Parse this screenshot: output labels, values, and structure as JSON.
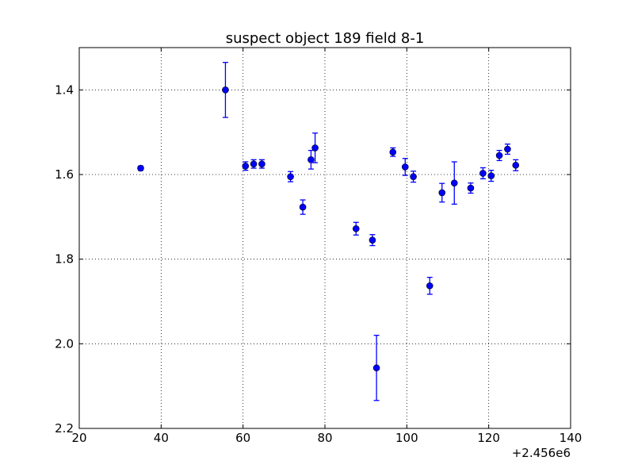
{
  "chart_data": {
    "type": "scatter",
    "title": "suspect object 189 field 8-1",
    "xlabel": "",
    "ylabel": "",
    "x_offset_label": "+2.456e6",
    "xlim": [
      20,
      140
    ],
    "ylim": [
      2.2,
      1.3
    ],
    "y_inverted": true,
    "grid": true,
    "x_ticks": [
      "20",
      "40",
      "60",
      "80",
      "100",
      "120",
      "140"
    ],
    "y_ticks": [
      "1.4",
      "1.6",
      "1.8",
      "2.0",
      "2.2"
    ],
    "marker_color": "#0000ff",
    "series": [
      {
        "points": [
          {
            "x": 35.0,
            "y": 1.585,
            "err": 0.005
          },
          {
            "x": 55.7,
            "y": 1.4,
            "err": 0.065
          },
          {
            "x": 60.6,
            "y": 1.58,
            "err": 0.01
          },
          {
            "x": 62.6,
            "y": 1.575,
            "err": 0.01
          },
          {
            "x": 64.6,
            "y": 1.575,
            "err": 0.01
          },
          {
            "x": 71.6,
            "y": 1.605,
            "err": 0.012
          },
          {
            "x": 74.6,
            "y": 1.677,
            "err": 0.017
          },
          {
            "x": 76.6,
            "y": 1.565,
            "err": 0.022
          },
          {
            "x": 77.6,
            "y": 1.537,
            "err": 0.035
          },
          {
            "x": 87.6,
            "y": 1.728,
            "err": 0.015
          },
          {
            "x": 91.6,
            "y": 1.755,
            "err": 0.013
          },
          {
            "x": 92.6,
            "y": 2.057,
            "err": 0.077
          },
          {
            "x": 96.6,
            "y": 1.547,
            "err": 0.01
          },
          {
            "x": 99.6,
            "y": 1.582,
            "err": 0.02
          },
          {
            "x": 101.6,
            "y": 1.605,
            "err": 0.013
          },
          {
            "x": 105.6,
            "y": 1.863,
            "err": 0.02
          },
          {
            "x": 108.6,
            "y": 1.643,
            "err": 0.022
          },
          {
            "x": 111.6,
            "y": 1.62,
            "err": 0.05
          },
          {
            "x": 115.6,
            "y": 1.632,
            "err": 0.012
          },
          {
            "x": 118.6,
            "y": 1.597,
            "err": 0.013
          },
          {
            "x": 120.6,
            "y": 1.603,
            "err": 0.013
          },
          {
            "x": 122.6,
            "y": 1.555,
            "err": 0.012
          },
          {
            "x": 124.6,
            "y": 1.54,
            "err": 0.012
          },
          {
            "x": 126.6,
            "y": 1.578,
            "err": 0.013
          }
        ]
      }
    ]
  }
}
